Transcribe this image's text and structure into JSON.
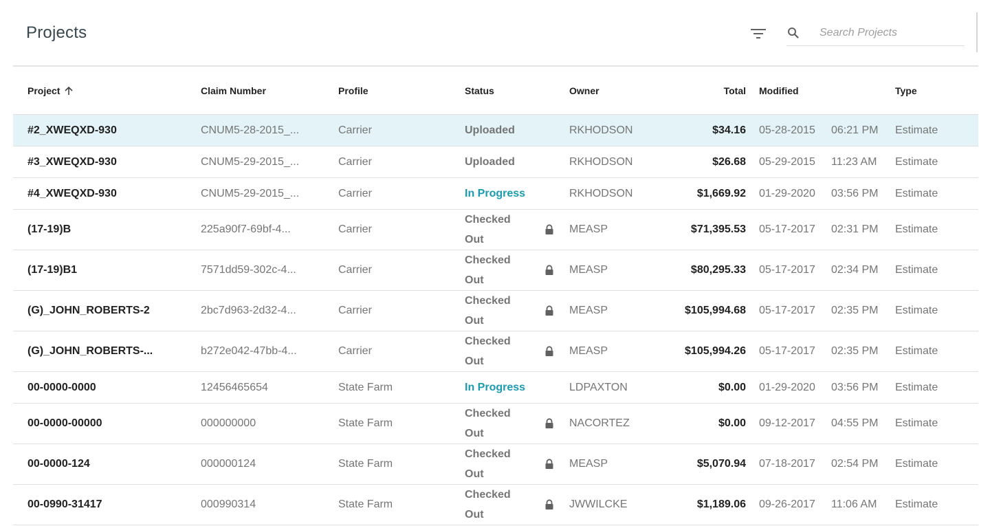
{
  "header": {
    "title": "Projects",
    "search_placeholder": "Search Projects",
    "filter_icon": "filter-icon",
    "search_icon": "search-icon"
  },
  "columns": {
    "project": "Project",
    "claim_number": "Claim Number",
    "profile": "Profile",
    "status": "Status",
    "owner": "Owner",
    "total": "Total",
    "modified": "Modified",
    "type": "Type",
    "sort_icon": "arrow-up-icon"
  },
  "colors": {
    "selected_row": "#e3f3f7",
    "in_progress": "#1a9bb0",
    "title": "#37474f"
  },
  "rows": [
    {
      "project": "#2_XWEQXD-930",
      "claim": "CNUM5-28-2015_...",
      "profile": "Carrier",
      "status": "Uploaded",
      "status_kind": "uploaded",
      "locked": false,
      "owner": "RKHODSON",
      "total": "$34.16",
      "date": "05-28-2015",
      "time": "06:21 PM",
      "type": "Estimate",
      "selected": true
    },
    {
      "project": "#3_XWEQXD-930",
      "claim": "CNUM5-29-2015_...",
      "profile": "Carrier",
      "status": "Uploaded",
      "status_kind": "uploaded",
      "locked": false,
      "owner": "RKHODSON",
      "total": "$26.68",
      "date": "05-29-2015",
      "time": "11:23 AM",
      "type": "Estimate",
      "selected": false
    },
    {
      "project": "#4_XWEQXD-930",
      "claim": "CNUM5-29-2015_...",
      "profile": "Carrier",
      "status": "In Progress",
      "status_kind": "progress",
      "locked": false,
      "owner": "RKHODSON",
      "total": "$1,669.92",
      "date": "01-29-2020",
      "time": "03:56 PM",
      "type": "Estimate",
      "selected": false
    },
    {
      "project": "(17-19)B",
      "claim": "225a90f7-69bf-4...",
      "profile": "Carrier",
      "status": "Checked Out",
      "status_kind": "checked",
      "locked": true,
      "owner": "MEASP",
      "total": "$71,395.53",
      "date": "05-17-2017",
      "time": "02:31 PM",
      "type": "Estimate",
      "selected": false
    },
    {
      "project": "(17-19)B1",
      "claim": "7571dd59-302c-4...",
      "profile": "Carrier",
      "status": "Checked Out",
      "status_kind": "checked",
      "locked": true,
      "owner": "MEASP",
      "total": "$80,295.33",
      "date": "05-17-2017",
      "time": "02:34 PM",
      "type": "Estimate",
      "selected": false
    },
    {
      "project": "(G)_JOHN_ROBERTS-2",
      "claim": "2bc7d963-2d32-4...",
      "profile": "Carrier",
      "status": "Checked Out",
      "status_kind": "checked",
      "locked": true,
      "owner": "MEASP",
      "total": "$105,994.68",
      "date": "05-17-2017",
      "time": "02:35 PM",
      "type": "Estimate",
      "selected": false
    },
    {
      "project": "(G)_JOHN_ROBERTS-...",
      "claim": "b272e042-47bb-4...",
      "profile": "Carrier",
      "status": "Checked Out",
      "status_kind": "checked",
      "locked": true,
      "owner": "MEASP",
      "total": "$105,994.26",
      "date": "05-17-2017",
      "time": "02:35 PM",
      "type": "Estimate",
      "selected": false
    },
    {
      "project": "00-0000-0000",
      "claim": "12456465654",
      "profile": "State Farm",
      "status": "In Progress",
      "status_kind": "progress",
      "locked": false,
      "owner": "LDPAXTON",
      "total": "$0.00",
      "date": "01-29-2020",
      "time": "03:56 PM",
      "type": "Estimate",
      "selected": false
    },
    {
      "project": "00-0000-00000",
      "claim": "000000000",
      "profile": "State Farm",
      "status": "Checked Out",
      "status_kind": "checked",
      "locked": true,
      "owner": "NACORTEZ",
      "total": "$0.00",
      "date": "09-12-2017",
      "time": "04:55 PM",
      "type": "Estimate",
      "selected": false
    },
    {
      "project": "00-0000-124",
      "claim": "000000124",
      "profile": "State Farm",
      "status": "Checked Out",
      "status_kind": "checked",
      "locked": true,
      "owner": "MEASP",
      "total": "$5,070.94",
      "date": "07-18-2017",
      "time": "02:54 PM",
      "type": "Estimate",
      "selected": false
    },
    {
      "project": "00-0990-31417",
      "claim": "000990314",
      "profile": "State Farm",
      "status": "Checked Out",
      "status_kind": "checked",
      "locked": true,
      "owner": "JWWILCKE",
      "total": "$1,189.06",
      "date": "09-26-2017",
      "time": "11:06 AM",
      "type": "Estimate",
      "selected": false
    }
  ]
}
